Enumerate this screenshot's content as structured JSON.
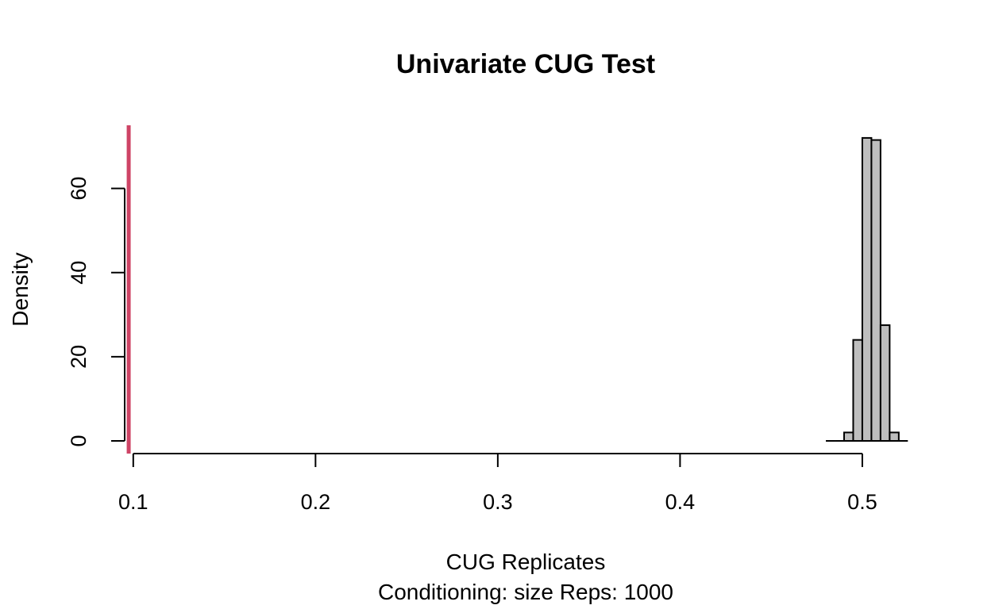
{
  "chart_data": {
    "type": "bar",
    "title": "Univariate CUG Test",
    "xlabel": "CUG Replicates",
    "subtitle": "Conditioning: size Reps: 1000",
    "ylabel": "Density",
    "xlim": [
      0.0966,
      0.5205
    ],
    "ylim": [
      0,
      75
    ],
    "x_ticks": [
      0.1,
      0.2,
      0.3,
      0.4,
      0.5
    ],
    "x_tick_labels": [
      "0.1",
      "0.2",
      "0.3",
      "0.4",
      "0.5"
    ],
    "y_ticks": [
      0,
      20,
      40,
      60
    ],
    "y_tick_labels": [
      "0",
      "20",
      "40",
      "60"
    ],
    "bin_width": 0.005,
    "bins": [
      {
        "start": 0.48,
        "density": 0
      },
      {
        "start": 0.485,
        "density": 0
      },
      {
        "start": 0.49,
        "density": 2
      },
      {
        "start": 0.495,
        "density": 24
      },
      {
        "start": 0.5,
        "density": 72
      },
      {
        "start": 0.505,
        "density": 71.5
      },
      {
        "start": 0.51,
        "density": 27.5
      },
      {
        "start": 0.515,
        "density": 2
      },
      {
        "start": 0.52,
        "density": 0
      }
    ],
    "observed_value": 0.0975,
    "observed_line_color": "#CE4466",
    "bar_fill": "#BEBEBE",
    "grid": false,
    "legend": "none"
  }
}
